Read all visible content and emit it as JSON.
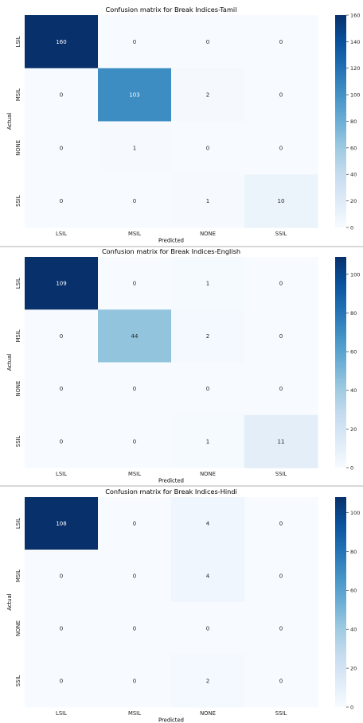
{
  "colors": {
    "low": "#f7fbff",
    "high": "#08306b",
    "dark_text": "#262626",
    "light_text": "#ffffff",
    "separator": "#b0b0b0"
  },
  "chart_data": [
    {
      "type": "heatmap",
      "title": "Confusion matrix for Break Indices-Tamil",
      "xlabel": "Predicted",
      "ylabel": "Actual",
      "x_categories": [
        "LSIL",
        "MSIL",
        "NONE",
        "SSIL"
      ],
      "y_categories": [
        "LSIL",
        "MSIL",
        "NONE",
        "SSIL"
      ],
      "values": [
        [
          160,
          0,
          0,
          0
        ],
        [
          0,
          103,
          2,
          0
        ],
        [
          0,
          1,
          0,
          0
        ],
        [
          0,
          0,
          1,
          10
        ]
      ],
      "colorbar": {
        "min": 0,
        "max": 160,
        "ticks": [
          0,
          20,
          40,
          60,
          80,
          100,
          120,
          140,
          160
        ]
      }
    },
    {
      "type": "heatmap",
      "title": "Confusion matrix for Break Indices-English",
      "xlabel": "Predicted",
      "ylabel": "Actual",
      "x_categories": [
        "LSIL",
        "MSIL",
        "NONE",
        "SSIL"
      ],
      "y_categories": [
        "LSIL",
        "MSIL",
        "NONE",
        "SSIL"
      ],
      "values": [
        [
          109,
          0,
          1,
          0
        ],
        [
          0,
          44,
          2,
          0
        ],
        [
          0,
          0,
          0,
          0
        ],
        [
          0,
          0,
          1,
          11
        ]
      ],
      "colorbar": {
        "min": 0,
        "max": 109,
        "ticks": [
          0,
          20,
          40,
          60,
          80,
          100
        ]
      }
    },
    {
      "type": "heatmap",
      "title": "Confusion matrix for Break Indices-Hindi",
      "xlabel": "Predicted",
      "ylabel": "Actual",
      "x_categories": [
        "LSIL",
        "MSIL",
        "NONE",
        "SSIL"
      ],
      "y_categories": [
        "LSIL",
        "MSIL",
        "NONE",
        "SSIL"
      ],
      "values": [
        [
          108,
          0,
          4,
          0
        ],
        [
          0,
          0,
          4,
          0
        ],
        [
          0,
          0,
          0,
          0
        ],
        [
          0,
          0,
          2,
          0
        ]
      ],
      "colorbar": {
        "min": 0,
        "max": 108,
        "ticks": [
          0,
          20,
          40,
          60,
          80,
          100
        ]
      }
    }
  ]
}
